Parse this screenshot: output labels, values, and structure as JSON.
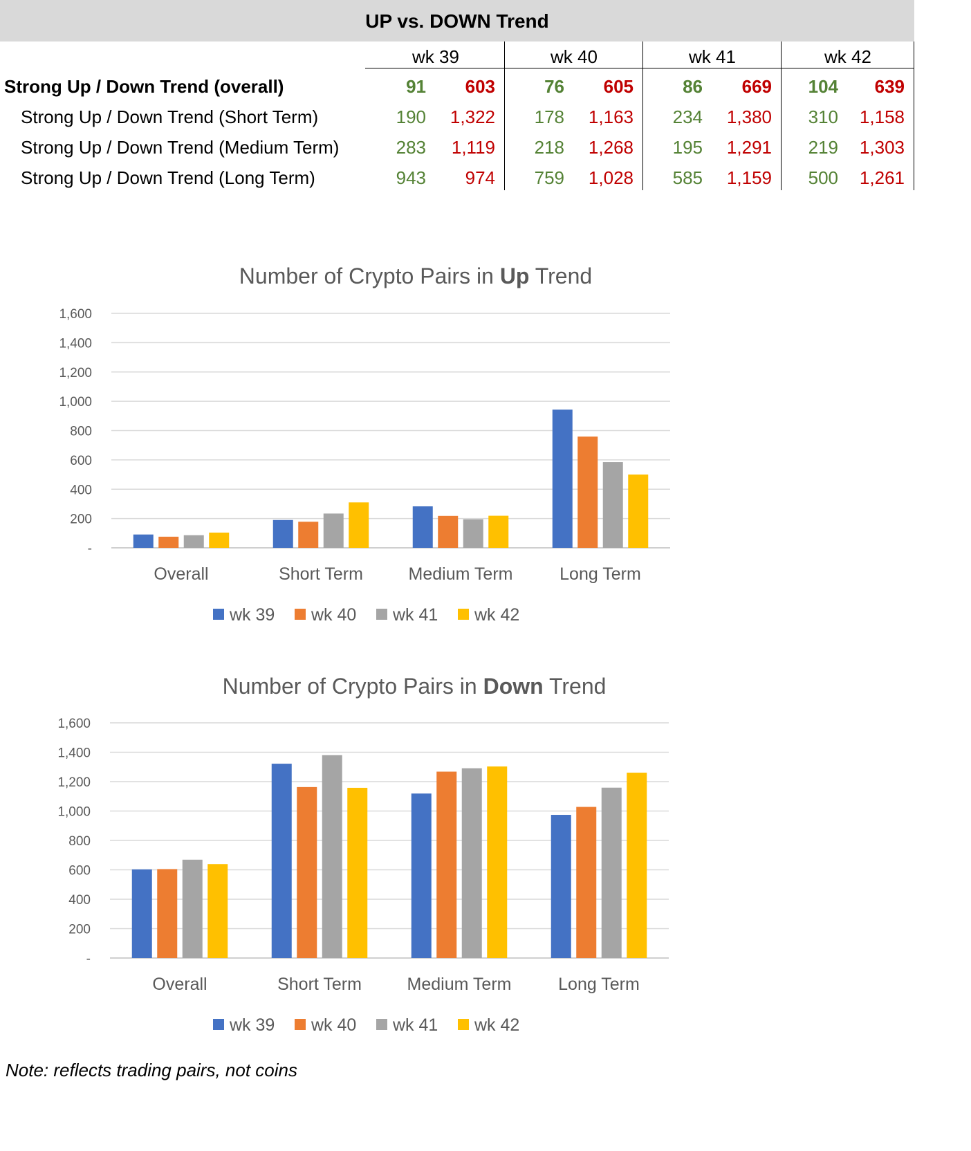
{
  "table": {
    "title": "UP vs. DOWN Trend",
    "weeks": [
      "wk 39",
      "wk 40",
      "wk 41",
      "wk 42"
    ],
    "rows": [
      {
        "label": "Strong Up / Down Trend (overall)",
        "bold": true,
        "values": [
          [
            "91",
            "603"
          ],
          [
            "76",
            "605"
          ],
          [
            "86",
            "669"
          ],
          [
            "104",
            "639"
          ]
        ]
      },
      {
        "label": "Strong Up / Down Trend (Short Term)",
        "bold": false,
        "values": [
          [
            "190",
            "1,322"
          ],
          [
            "178",
            "1,163"
          ],
          [
            "234",
            "1,380"
          ],
          [
            "310",
            "1,158"
          ]
        ]
      },
      {
        "label": "Strong Up / Down Trend (Medium Term)",
        "bold": false,
        "values": [
          [
            "283",
            "1,119"
          ],
          [
            "218",
            "1,268"
          ],
          [
            "195",
            "1,291"
          ],
          [
            "219",
            "1,303"
          ]
        ]
      },
      {
        "label": "Strong Up / Down Trend (Long Term)",
        "bold": false,
        "values": [
          [
            "943",
            "974"
          ],
          [
            "759",
            "1,028"
          ],
          [
            "585",
            "1,159"
          ],
          [
            "500",
            "1,261"
          ]
        ]
      }
    ],
    "colors": {
      "up": "#548235",
      "down": "#c00000",
      "header_bg": "#d9d9d9"
    }
  },
  "chart_data": [
    {
      "type": "bar",
      "title_prefix": "Number of Crypto Pairs in ",
      "title_bold": "Up",
      "title_suffix": " Trend",
      "categories": [
        "Overall",
        "Short Term",
        "Medium Term",
        "Long Term"
      ],
      "series": [
        {
          "name": "wk 39",
          "color": "#4472c4",
          "values": [
            91,
            190,
            283,
            943
          ]
        },
        {
          "name": "wk 40",
          "color": "#ed7d31",
          "values": [
            76,
            178,
            218,
            759
          ]
        },
        {
          "name": "wk 41",
          "color": "#a5a5a5",
          "values": [
            86,
            234,
            195,
            585
          ]
        },
        {
          "name": "wk 42",
          "color": "#ffc000",
          "values": [
            104,
            310,
            219,
            500
          ]
        }
      ],
      "ylim": [
        0,
        1600
      ],
      "yticks": [
        0,
        200,
        400,
        600,
        800,
        1000,
        1200,
        1400,
        1600
      ],
      "ytick_labels": [
        "-",
        "200",
        "400",
        "600",
        "800",
        "1,000",
        "1,200",
        "1,400",
        "1,600"
      ],
      "grid": true,
      "legend": "bottom"
    },
    {
      "type": "bar",
      "title_prefix": "Number of Crypto Pairs in ",
      "title_bold": "Down",
      "title_suffix": " Trend",
      "categories": [
        "Overall",
        "Short Term",
        "Medium Term",
        "Long Term"
      ],
      "series": [
        {
          "name": "wk 39",
          "color": "#4472c4",
          "values": [
            603,
            1322,
            1119,
            974
          ]
        },
        {
          "name": "wk 40",
          "color": "#ed7d31",
          "values": [
            605,
            1163,
            1268,
            1028
          ]
        },
        {
          "name": "wk 41",
          "color": "#a5a5a5",
          "values": [
            669,
            1380,
            1291,
            1159
          ]
        },
        {
          "name": "wk 42",
          "color": "#ffc000",
          "values": [
            639,
            1158,
            1303,
            1261
          ]
        }
      ],
      "ylim": [
        0,
        1600
      ],
      "yticks": [
        0,
        200,
        400,
        600,
        800,
        1000,
        1200,
        1400,
        1600
      ],
      "ytick_labels": [
        "-",
        "200",
        "400",
        "600",
        "800",
        "1,000",
        "1,200",
        "1,400",
        "1,600"
      ],
      "grid": true,
      "legend": "bottom"
    }
  ],
  "note": "Note: reflects trading pairs, not coins"
}
